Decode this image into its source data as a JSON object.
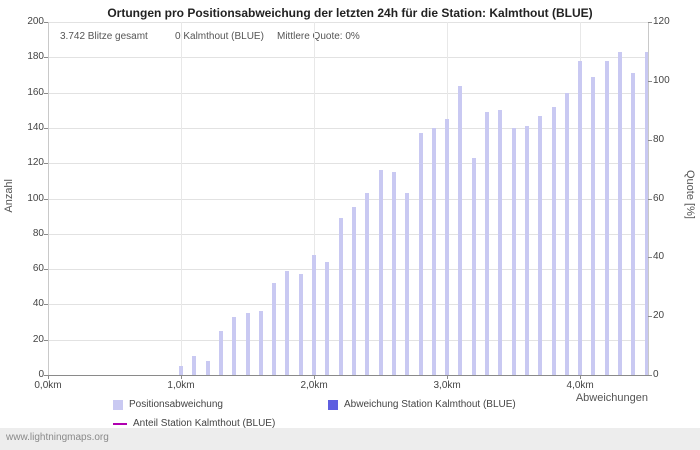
{
  "title": "Ortungen pro Positionsabweichung der letzten 24h für die Station: Kalmthout (BLUE)",
  "annotations": {
    "total_flashes": "3.742 Blitze gesamt",
    "station_count": "0 Kalmthout (BLUE)",
    "mean_quote": "Mittlere Quote: 0%"
  },
  "axes": {
    "left_label": "Anzahl",
    "right_label": "Quote [%]",
    "x_label": "Abweichungen"
  },
  "legend": [
    {
      "label": "Positionsabweichung",
      "color": "#c9c9f2",
      "marker": "square"
    },
    {
      "label": "Abweichung Station Kalmthout (BLUE)",
      "color": "#5f5fe0",
      "marker": "square"
    },
    {
      "label": "Anteil Station Kalmthout (BLUE)",
      "color": "#b000b0",
      "marker": "line"
    }
  ],
  "watermark": "www.lightningmaps.org",
  "chart_data": {
    "type": "bar",
    "title": "Ortungen pro Positionsabweichung der letzten 24h für die Station: Kalmthout (BLUE)",
    "xlabel": "Abweichungen",
    "ylabel_left": "Anzahl",
    "ylabel_right": "Quote [%]",
    "x_unit": "km",
    "x_start": 1.0,
    "x_step": 0.1,
    "x_max_km": 4.51,
    "values": [
      5,
      11,
      8,
      25,
      33,
      35,
      36,
      52,
      59,
      57,
      68,
      64,
      89,
      95,
      103,
      116,
      115,
      103,
      137,
      140,
      145,
      164,
      123,
      149,
      150,
      140,
      141,
      147,
      152,
      160,
      178,
      169,
      178,
      183,
      171,
      183
    ],
    "x_tick_labels": [
      "0,0km",
      "1,0km",
      "2,0km",
      "3,0km",
      "4,0km"
    ],
    "x_tick_positions_km": [
      0,
      1,
      2,
      3,
      4
    ],
    "y_left": {
      "min": 0,
      "max": 200,
      "step": 20
    },
    "y_right": {
      "min": 0,
      "max": 120,
      "step": 20
    },
    "bar_color": "#c9c9f2",
    "grid": true,
    "legend_position": "bottom",
    "station_series_note": "0 Kalmthout (BLUE), Mittlere Quote: 0%"
  }
}
